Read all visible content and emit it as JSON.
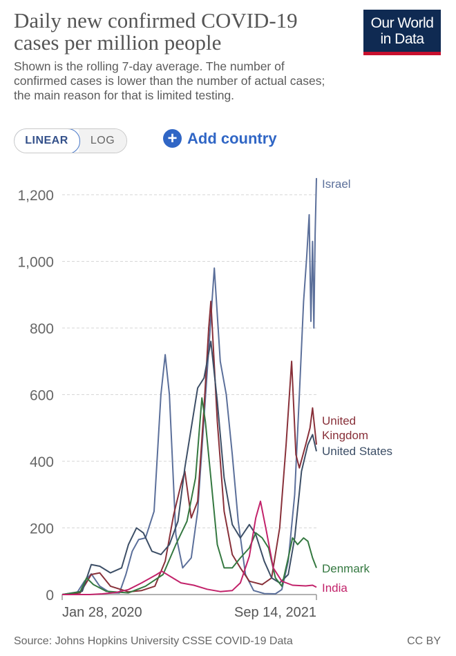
{
  "header": {
    "title": "Daily new confirmed COVID-19 cases per million people",
    "subtitle": "Shown is the rolling 7-day average. The number of confirmed cases is lower than the number of actual cases; the main reason for that is limited testing.",
    "logo_line1": "Our World",
    "logo_line2": "in Data"
  },
  "controls": {
    "linear_label": "LINEAR",
    "log_label": "LOG",
    "add_country_label": "Add country",
    "plus_glyph": "+"
  },
  "footer": {
    "source": "Source: Johns Hopkins University CSSE COVID-19 Data",
    "license": "CC BY"
  },
  "chart_data": {
    "type": "line",
    "title": "Daily new confirmed COVID-19 cases per million people",
    "xlabel": "",
    "ylabel": "",
    "x_range": [
      "2020-01-28",
      "2021-09-14"
    ],
    "x_ticks": [
      "Jan 28, 2020",
      "Sep 14, 2021"
    ],
    "ylim": [
      0,
      1300
    ],
    "y_ticks": [
      0,
      200,
      400,
      600,
      800,
      1000,
      1200
    ],
    "y_tick_labels": [
      "0",
      "200",
      "400",
      "600",
      "800",
      "1,000",
      "1,200"
    ],
    "grid": true,
    "legend": "inline labels at line ends (right)",
    "series": [
      {
        "name": "Israel",
        "color": "#5b6f9a",
        "points": [
          [
            "2020-01-28",
            0
          ],
          [
            "2020-03-01",
            2
          ],
          [
            "2020-03-20",
            40
          ],
          [
            "2020-04-05",
            62
          ],
          [
            "2020-04-25",
            25
          ],
          [
            "2020-05-20",
            5
          ],
          [
            "2020-06-10",
            5
          ],
          [
            "2020-06-25",
            60
          ],
          [
            "2020-07-10",
            130
          ],
          [
            "2020-07-25",
            165
          ],
          [
            "2020-08-10",
            170
          ],
          [
            "2020-08-30",
            250
          ],
          [
            "2020-09-15",
            600
          ],
          [
            "2020-09-25",
            720
          ],
          [
            "2020-10-05",
            600
          ],
          [
            "2020-10-20",
            180
          ],
          [
            "2020-11-05",
            80
          ],
          [
            "2020-11-25",
            110
          ],
          [
            "2020-12-10",
            250
          ],
          [
            "2020-12-25",
            530
          ],
          [
            "2021-01-10",
            830
          ],
          [
            "2021-01-18",
            980
          ],
          [
            "2021-02-01",
            700
          ],
          [
            "2021-02-15",
            600
          ],
          [
            "2021-03-01",
            420
          ],
          [
            "2021-03-15",
            220
          ],
          [
            "2021-04-01",
            60
          ],
          [
            "2021-04-20",
            12
          ],
          [
            "2021-05-15",
            3
          ],
          [
            "2021-06-10",
            2
          ],
          [
            "2021-06-25",
            15
          ],
          [
            "2021-07-10",
            100
          ],
          [
            "2021-07-25",
            300
          ],
          [
            "2021-08-05",
            600
          ],
          [
            "2021-08-15",
            880
          ],
          [
            "2021-08-22",
            1010
          ],
          [
            "2021-08-28",
            1140
          ],
          [
            "2021-09-01",
            820
          ],
          [
            "2021-09-05",
            1060
          ],
          [
            "2021-09-08",
            800
          ],
          [
            "2021-09-11",
            1080
          ],
          [
            "2021-09-14",
            1250
          ]
        ]
      },
      {
        "name": "United Kingdom",
        "color": "#883039",
        "points": [
          [
            "2020-01-28",
            0
          ],
          [
            "2020-03-10",
            5
          ],
          [
            "2020-04-05",
            60
          ],
          [
            "2020-04-25",
            65
          ],
          [
            "2020-05-20",
            25
          ],
          [
            "2020-07-01",
            8
          ],
          [
            "2020-08-01",
            12
          ],
          [
            "2020-09-01",
            25
          ],
          [
            "2020-09-25",
            100
          ],
          [
            "2020-10-15",
            240
          ],
          [
            "2020-11-01",
            330
          ],
          [
            "2020-11-10",
            370
          ],
          [
            "2020-11-25",
            230
          ],
          [
            "2020-12-10",
            280
          ],
          [
            "2020-12-25",
            560
          ],
          [
            "2021-01-05",
            800
          ],
          [
            "2021-01-10",
            880
          ],
          [
            "2021-01-25",
            520
          ],
          [
            "2021-02-10",
            250
          ],
          [
            "2021-03-01",
            120
          ],
          [
            "2021-03-20",
            80
          ],
          [
            "2021-04-10",
            40
          ],
          [
            "2021-05-10",
            30
          ],
          [
            "2021-06-01",
            50
          ],
          [
            "2021-06-20",
            200
          ],
          [
            "2021-07-05",
            450
          ],
          [
            "2021-07-18",
            700
          ],
          [
            "2021-07-28",
            420
          ],
          [
            "2021-08-05",
            380
          ],
          [
            "2021-08-20",
            450
          ],
          [
            "2021-08-30",
            500
          ],
          [
            "2021-09-05",
            560
          ],
          [
            "2021-09-14",
            450
          ]
        ]
      },
      {
        "name": "United States",
        "color": "#3c4e66",
        "points": [
          [
            "2020-01-28",
            0
          ],
          [
            "2020-03-15",
            10
          ],
          [
            "2020-04-05",
            90
          ],
          [
            "2020-04-25",
            85
          ],
          [
            "2020-05-20",
            65
          ],
          [
            "2020-06-15",
            80
          ],
          [
            "2020-07-01",
            150
          ],
          [
            "2020-07-20",
            200
          ],
          [
            "2020-08-05",
            185
          ],
          [
            "2020-08-25",
            130
          ],
          [
            "2020-09-15",
            120
          ],
          [
            "2020-10-05",
            150
          ],
          [
            "2020-10-25",
            220
          ],
          [
            "2020-11-10",
            380
          ],
          [
            "2020-11-25",
            500
          ],
          [
            "2020-12-10",
            620
          ],
          [
            "2020-12-25",
            650
          ],
          [
            "2021-01-10",
            760
          ],
          [
            "2021-01-25",
            580
          ],
          [
            "2021-02-10",
            350
          ],
          [
            "2021-03-01",
            210
          ],
          [
            "2021-03-20",
            170
          ],
          [
            "2021-04-10",
            210
          ],
          [
            "2021-04-25",
            180
          ],
          [
            "2021-05-15",
            100
          ],
          [
            "2021-06-01",
            50
          ],
          [
            "2021-06-20",
            35
          ],
          [
            "2021-07-10",
            60
          ],
          [
            "2021-07-25",
            170
          ],
          [
            "2021-08-10",
            370
          ],
          [
            "2021-08-25",
            450
          ],
          [
            "2021-09-05",
            480
          ],
          [
            "2021-09-14",
            430
          ]
        ]
      },
      {
        "name": "Denmark",
        "color": "#347840",
        "points": [
          [
            "2020-01-28",
            0
          ],
          [
            "2020-03-10",
            8
          ],
          [
            "2020-03-25",
            50
          ],
          [
            "2020-04-10",
            30
          ],
          [
            "2020-05-10",
            10
          ],
          [
            "2020-07-01",
            5
          ],
          [
            "2020-08-10",
            25
          ],
          [
            "2020-09-20",
            60
          ],
          [
            "2020-10-20",
            150
          ],
          [
            "2020-11-15",
            220
          ],
          [
            "2020-12-05",
            350
          ],
          [
            "2020-12-20",
            590
          ],
          [
            "2020-12-28",
            520
          ],
          [
            "2021-01-10",
            350
          ],
          [
            "2021-01-25",
            150
          ],
          [
            "2021-02-10",
            80
          ],
          [
            "2021-03-01",
            80
          ],
          [
            "2021-03-20",
            110
          ],
          [
            "2021-04-10",
            140
          ],
          [
            "2021-04-25",
            185
          ],
          [
            "2021-05-10",
            170
          ],
          [
            "2021-05-25",
            140
          ],
          [
            "2021-06-10",
            50
          ],
          [
            "2021-06-25",
            25
          ],
          [
            "2021-07-10",
            110
          ],
          [
            "2021-07-20",
            170
          ],
          [
            "2021-08-01",
            150
          ],
          [
            "2021-08-15",
            170
          ],
          [
            "2021-08-25",
            160
          ],
          [
            "2021-09-05",
            110
          ],
          [
            "2021-09-14",
            80
          ]
        ]
      },
      {
        "name": "India",
        "color": "#c2226a",
        "points": [
          [
            "2020-01-28",
            0
          ],
          [
            "2020-04-01",
            0
          ],
          [
            "2020-05-01",
            2
          ],
          [
            "2020-06-01",
            6
          ],
          [
            "2020-07-01",
            15
          ],
          [
            "2020-08-01",
            35
          ],
          [
            "2020-09-05",
            60
          ],
          [
            "2020-09-17",
            70
          ],
          [
            "2020-10-10",
            52
          ],
          [
            "2020-11-01",
            35
          ],
          [
            "2020-12-01",
            28
          ],
          [
            "2021-01-01",
            16
          ],
          [
            "2021-02-01",
            9
          ],
          [
            "2021-03-01",
            12
          ],
          [
            "2021-03-20",
            35
          ],
          [
            "2021-04-10",
            115
          ],
          [
            "2021-04-25",
            230
          ],
          [
            "2021-05-06",
            280
          ],
          [
            "2021-05-20",
            190
          ],
          [
            "2021-06-05",
            80
          ],
          [
            "2021-06-25",
            40
          ],
          [
            "2021-07-20",
            28
          ],
          [
            "2021-08-20",
            26
          ],
          [
            "2021-09-05",
            28
          ],
          [
            "2021-09-14",
            22
          ]
        ]
      }
    ]
  }
}
